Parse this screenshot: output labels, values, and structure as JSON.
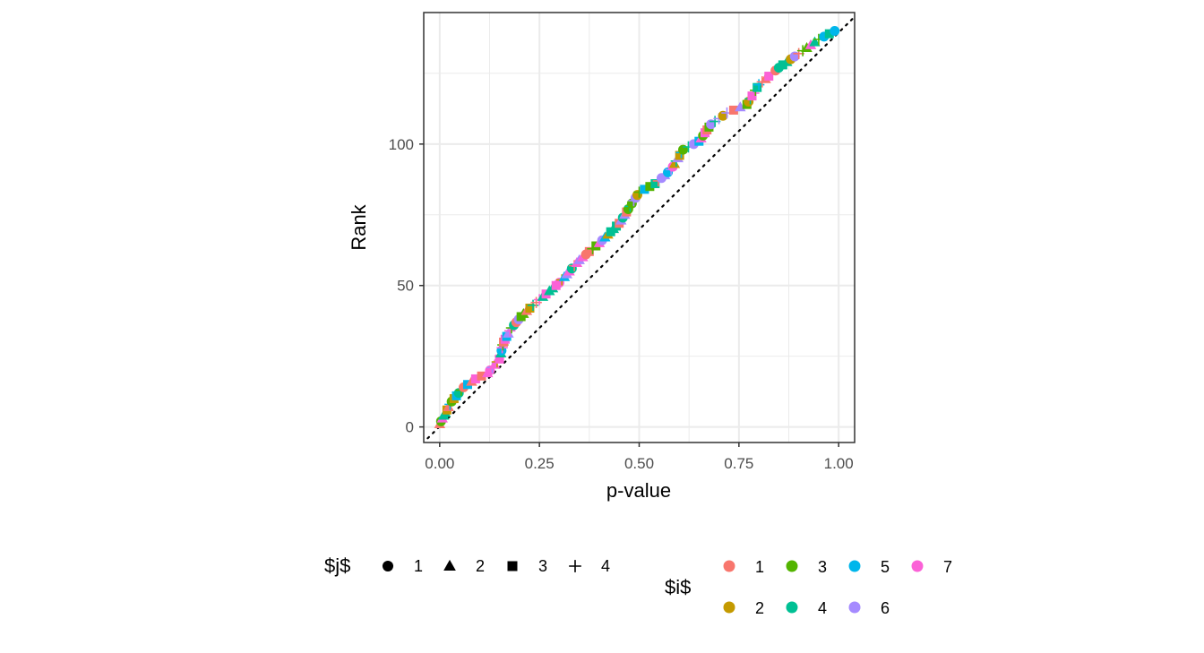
{
  "chart_data": {
    "type": "scatter",
    "xlabel": "p-value",
    "ylabel": "Rank",
    "xlim": [
      -0.04,
      1.04
    ],
    "ylim": [
      -5.5,
      146.5
    ],
    "x_ticks": [
      0,
      0.25,
      0.5,
      0.75,
      1
    ],
    "x_tick_labels": [
      "0.00",
      "0.25",
      "0.50",
      "0.75",
      "1.00"
    ],
    "y_ticks": [
      0,
      50,
      100
    ],
    "y_tick_labels": [
      "0",
      "50",
      "100"
    ],
    "grid": true,
    "reference_line": {
      "style": "dotted",
      "from": [
        -0.03,
        -4
      ],
      "to": [
        1.04,
        145
      ]
    },
    "legend_position": "bottom",
    "shape_legend": {
      "title": "$j$",
      "items": [
        {
          "label": "1",
          "shape": "circle"
        },
        {
          "label": "2",
          "shape": "triangle"
        },
        {
          "label": "3",
          "shape": "square"
        },
        {
          "label": "4",
          "shape": "plus"
        }
      ]
    },
    "color_legend": {
      "title": "$i$",
      "items": [
        {
          "label": "1",
          "color": "#F8766D"
        },
        {
          "label": "2",
          "color": "#C49A00"
        },
        {
          "label": "3",
          "color": "#53B400"
        },
        {
          "label": "4",
          "color": "#00C094"
        },
        {
          "label": "5",
          "color": "#00B6EB"
        },
        {
          "label": "6",
          "color": "#A58AFF"
        },
        {
          "label": "7",
          "color": "#FB61D7"
        }
      ]
    },
    "curve_knots": [
      [
        0.0,
        1
      ],
      [
        0.01,
        4
      ],
      [
        0.03,
        9
      ],
      [
        0.06,
        14
      ],
      [
        0.09,
        17
      ],
      [
        0.12,
        19
      ],
      [
        0.15,
        24
      ],
      [
        0.16,
        30
      ],
      [
        0.18,
        35
      ],
      [
        0.21,
        40
      ],
      [
        0.25,
        45
      ],
      [
        0.3,
        51
      ],
      [
        0.35,
        59
      ],
      [
        0.4,
        65
      ],
      [
        0.45,
        72
      ],
      [
        0.5,
        83
      ],
      [
        0.54,
        86
      ],
      [
        0.58,
        91
      ],
      [
        0.61,
        98
      ],
      [
        0.65,
        101
      ],
      [
        0.68,
        107
      ],
      [
        0.72,
        111
      ],
      [
        0.77,
        114
      ],
      [
        0.8,
        121
      ],
      [
        0.85,
        127
      ],
      [
        0.9,
        132
      ],
      [
        0.95,
        137
      ],
      [
        0.99,
        140
      ]
    ],
    "n_points": 140
  }
}
